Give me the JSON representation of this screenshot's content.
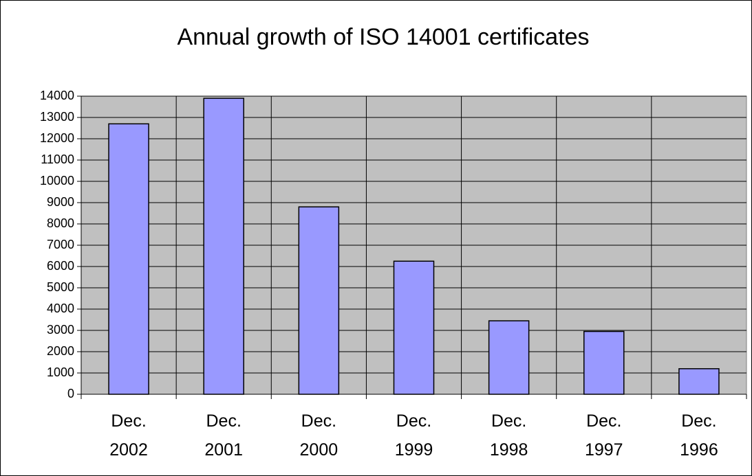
{
  "chart_data": {
    "type": "bar",
    "title": "Annual growth of ISO 14001 certificates",
    "categories": [
      "Dec.\n2002",
      "Dec.\n2001",
      "Dec.\n2000",
      "Dec.\n1999",
      "Dec.\n1998",
      "Dec.\n1997",
      "Dec.\n1996"
    ],
    "values": [
      12700,
      13900,
      8800,
      6250,
      3450,
      2950,
      1200
    ],
    "color": "#9999ff",
    "ylim": [
      0,
      14000
    ],
    "yticks": [
      0,
      1000,
      2000,
      3000,
      4000,
      5000,
      6000,
      7000,
      8000,
      9000,
      10000,
      11000,
      12000,
      13000,
      14000
    ],
    "grid": true
  }
}
